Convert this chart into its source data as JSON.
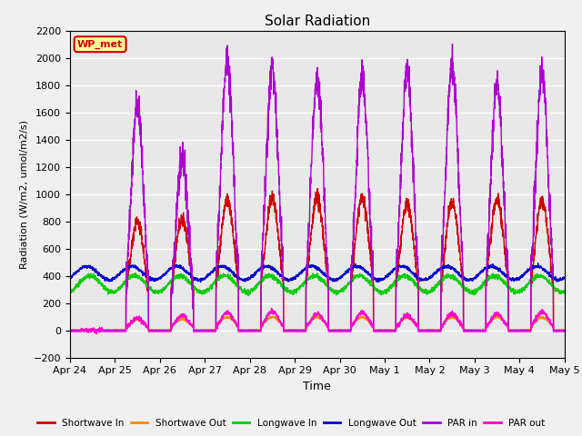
{
  "title": "Solar Radiation",
  "ylabel": "Radiation (W/m2, umol/m2/s)",
  "xlabel": "Time",
  "ylim": [
    -200,
    2200
  ],
  "yticks": [
    -200,
    0,
    200,
    400,
    600,
    800,
    1000,
    1200,
    1400,
    1600,
    1800,
    2000,
    2200
  ],
  "background_color": "#f0f0f0",
  "plot_bg_color": "#e8e8e8",
  "annotation_text": "WP_met",
  "annotation_bg": "#ffff99",
  "annotation_border": "#cc0000",
  "lines": {
    "shortwave_in": {
      "color": "#cc0000",
      "label": "Shortwave In",
      "lw": 1.0
    },
    "shortwave_out": {
      "color": "#ff8800",
      "label": "Shortwave Out",
      "lw": 1.0
    },
    "longwave_in": {
      "color": "#00cc00",
      "label": "Longwave In",
      "lw": 1.0
    },
    "longwave_out": {
      "color": "#0000cc",
      "label": "Longwave Out",
      "lw": 1.0
    },
    "par_in": {
      "color": "#aa00cc",
      "label": "PAR in",
      "lw": 1.0
    },
    "par_out": {
      "color": "#ff00cc",
      "label": "PAR out",
      "lw": 1.0
    }
  },
  "xticklabels": [
    "Apr 24",
    "Apr 25",
    "Apr 26",
    "Apr 27",
    "Apr 28",
    "Apr 29",
    "Apr 30",
    "May 1",
    "May 2",
    "May 3",
    "May 4",
    "May 5"
  ],
  "num_days": 11,
  "points_per_day": 288
}
